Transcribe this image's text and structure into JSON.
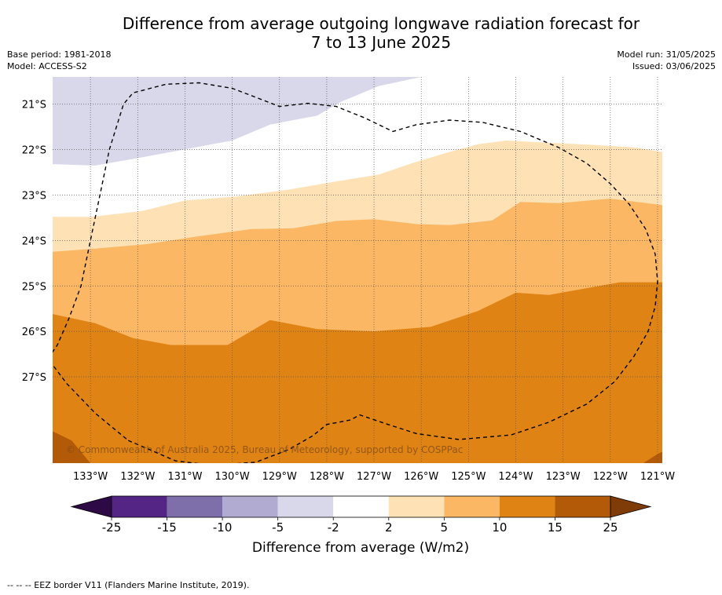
{
  "title_line1": "Difference from average outgoing longwave radiation forecast for",
  "title_line2": "7 to 13 June 2025",
  "base_period": "Base period: 1981-2018",
  "model": "Model: ACCESS-S2",
  "model_run": "Model run: 31/05/2025",
  "issued": "Issued: 03/06/2025",
  "copyright": "© Commonwealth of Australia 2025, Bureau of Meteorology, supported by COSPPac",
  "colorbar_label": "Difference from average (W/m2)",
  "footnote": "--  --  -- EEZ border V11 (Flanders Marine Institute, 2019).",
  "colors": {
    "lt_m25": "#2d0a45",
    "m25_m15": "#552586",
    "m15_m10": "#7e6fab",
    "m10_m5": "#b1aad1",
    "m5_m2": "#d8d8ea",
    "m2_2": "#ffffff",
    "p2_p5": "#fee1b5",
    "p5_p10": "#fbb763",
    "p10_p15": "#e08315",
    "p15_p25": "#b35a08",
    "gt_p25": "#7f3b08"
  },
  "chart_data": {
    "type": "heatmap",
    "title": "Difference from average outgoing longwave radiation forecast for 7 to 13 June 2025",
    "xlabel": "",
    "ylabel": "",
    "xlim": [
      -133.8,
      -120.9
    ],
    "ylim": [
      -28.9,
      -20.4
    ],
    "x_ticks": [
      "133°W",
      "132°W",
      "131°W",
      "130°W",
      "129°W",
      "128°W",
      "127°W",
      "126°W",
      "125°W",
      "124°W",
      "123°W",
      "122°W",
      "121°W"
    ],
    "y_ticks": [
      "21°S",
      "22°S",
      "23°S",
      "24°S",
      "25°S",
      "26°S",
      "27°S"
    ],
    "grid": true,
    "colorbar": {
      "label": "Difference from average (W/m2)",
      "boundaries": [
        -25,
        -15,
        -10,
        -5,
        -2,
        2,
        5,
        10,
        15,
        25
      ],
      "tick_labels": [
        "-25",
        "-15",
        "-10",
        "-5",
        "-2",
        "2",
        "5",
        "10",
        "15",
        "25"
      ],
      "extend": "both"
    },
    "regions": [
      {
        "range": "-10 to -5",
        "color": "#b1aad1",
        "boundary": [
          [
            -133.8,
            -21.45
          ],
          [
            -132.9,
            -21.65
          ],
          [
            -131.6,
            -21.45
          ],
          [
            -130.4,
            -21.15
          ],
          [
            -129.5,
            -20.75
          ],
          [
            -129.0,
            -20.4
          ],
          [
            -133.8,
            -20.4
          ]
        ]
      },
      {
        "range": "-5 to -2",
        "color": "#d8d8ea",
        "boundary": [
          [
            -133.8,
            -22.32
          ],
          [
            -132.9,
            -22.35
          ],
          [
            -131.8,
            -22.15
          ],
          [
            -130.0,
            -21.8
          ],
          [
            -129.2,
            -21.45
          ],
          [
            -128.2,
            -21.25
          ],
          [
            -127.7,
            -20.95
          ],
          [
            -126.9,
            -20.6
          ],
          [
            -126.0,
            -20.4
          ],
          [
            -133.8,
            -20.4
          ]
        ]
      },
      {
        "range": "2 to 5",
        "color": "#fee1b5",
        "boundary": [
          [
            -133.8,
            -23.48
          ],
          [
            -133.0,
            -23.48
          ],
          [
            -131.9,
            -23.35
          ],
          [
            -131.0,
            -23.12
          ],
          [
            -129.9,
            -23.03
          ],
          [
            -128.8,
            -22.88
          ],
          [
            -127.8,
            -22.7
          ],
          [
            -126.9,
            -22.55
          ],
          [
            -126.2,
            -22.3
          ],
          [
            -125.4,
            -22.05
          ],
          [
            -124.8,
            -21.88
          ],
          [
            -124.2,
            -21.8
          ],
          [
            -123.3,
            -21.85
          ],
          [
            -122.3,
            -21.9
          ],
          [
            -121.5,
            -21.95
          ],
          [
            -120.9,
            -22.05
          ],
          [
            -120.9,
            -28.9
          ],
          [
            -133.8,
            -28.9
          ]
        ]
      },
      {
        "range": "5 to 10",
        "color": "#fbb763",
        "boundary": [
          [
            -133.8,
            -24.25
          ],
          [
            -132.9,
            -24.18
          ],
          [
            -131.8,
            -24.08
          ],
          [
            -130.8,
            -23.92
          ],
          [
            -129.6,
            -23.75
          ],
          [
            -128.7,
            -23.73
          ],
          [
            -127.8,
            -23.57
          ],
          [
            -127.0,
            -23.53
          ],
          [
            -126.1,
            -23.64
          ],
          [
            -125.4,
            -23.66
          ],
          [
            -124.5,
            -23.56
          ],
          [
            -123.9,
            -23.15
          ],
          [
            -123.1,
            -23.18
          ],
          [
            -122.0,
            -23.08
          ],
          [
            -120.9,
            -23.22
          ],
          [
            -120.9,
            -28.9
          ],
          [
            -133.8,
            -28.9
          ]
        ]
      },
      {
        "range": "10 to 15",
        "color": "#e08315",
        "boundary": [
          [
            -133.8,
            -25.62
          ],
          [
            -132.9,
            -25.82
          ],
          [
            -132.1,
            -26.15
          ],
          [
            -131.3,
            -26.3
          ],
          [
            -130.1,
            -26.3
          ],
          [
            -129.2,
            -25.75
          ],
          [
            -128.2,
            -25.95
          ],
          [
            -127.0,
            -26.0
          ],
          [
            -125.8,
            -25.9
          ],
          [
            -124.8,
            -25.55
          ],
          [
            -124.0,
            -25.15
          ],
          [
            -123.3,
            -25.2
          ],
          [
            -121.8,
            -24.92
          ],
          [
            -120.9,
            -24.92
          ],
          [
            -120.9,
            -28.9
          ],
          [
            -133.8,
            -28.9
          ]
        ]
      },
      {
        "range": "15 to 25",
        "color": "#b35a08",
        "boundary": [
          [
            -133.8,
            -28.2
          ],
          [
            -133.4,
            -28.4
          ],
          [
            -133.0,
            -28.9
          ],
          [
            -133.8,
            -28.9
          ]
        ]
      },
      {
        "range": "15 to 25",
        "color": "#b35a08",
        "boundary": [
          [
            -121.3,
            -28.9
          ],
          [
            -121.0,
            -28.7
          ],
          [
            -120.9,
            -28.65
          ],
          [
            -120.9,
            -28.9
          ]
        ]
      }
    ],
    "eez_border": [
      [
        -132.2,
        -28.4
      ],
      [
        -131.2,
        -28.85
      ],
      [
        -130.4,
        -28.95
      ],
      [
        -129.5,
        -28.88
      ],
      [
        -128.8,
        -28.6
      ],
      [
        -128.3,
        -28.3
      ],
      [
        -128.0,
        -28.05
      ],
      [
        -127.5,
        -27.95
      ],
      [
        -127.3,
        -27.84
      ],
      [
        -126.7,
        -28.05
      ],
      [
        -126.1,
        -28.25
      ],
      [
        -125.2,
        -28.38
      ],
      [
        -124.1,
        -28.28
      ],
      [
        -123.3,
        -28.0
      ],
      [
        -122.5,
        -27.6
      ],
      [
        -121.9,
        -27.1
      ],
      [
        -121.5,
        -26.55
      ],
      [
        -121.2,
        -26.0
      ],
      [
        -121.05,
        -25.45
      ],
      [
        -121.0,
        -24.9
      ],
      [
        -121.05,
        -24.3
      ],
      [
        -121.25,
        -23.75
      ],
      [
        -121.6,
        -23.2
      ],
      [
        -122.0,
        -22.75
      ],
      [
        -122.5,
        -22.3
      ],
      [
        -123.1,
        -21.95
      ],
      [
        -123.9,
        -21.6
      ],
      [
        -124.7,
        -21.4
      ],
      [
        -125.4,
        -21.35
      ],
      [
        -126.1,
        -21.45
      ],
      [
        -126.6,
        -21.6
      ],
      [
        -127.2,
        -21.3
      ],
      [
        -127.8,
        -21.05
      ],
      [
        -128.4,
        -20.98
      ],
      [
        -129.0,
        -21.05
      ],
      [
        -129.5,
        -20.85
      ],
      [
        -130.0,
        -20.65
      ],
      [
        -130.7,
        -20.53
      ],
      [
        -131.4,
        -20.56
      ],
      [
        -132.1,
        -20.75
      ],
      [
        -132.3,
        -21.0
      ],
      [
        -132.6,
        -22.0
      ],
      [
        -132.8,
        -23.0
      ],
      [
        -133.0,
        -24.0
      ],
      [
        -133.2,
        -25.0
      ],
      [
        -133.45,
        -25.7
      ],
      [
        -133.7,
        -26.3
      ],
      [
        -133.9,
        -26.6
      ],
      [
        -133.5,
        -27.15
      ],
      [
        -132.9,
        -27.8
      ]
    ]
  }
}
